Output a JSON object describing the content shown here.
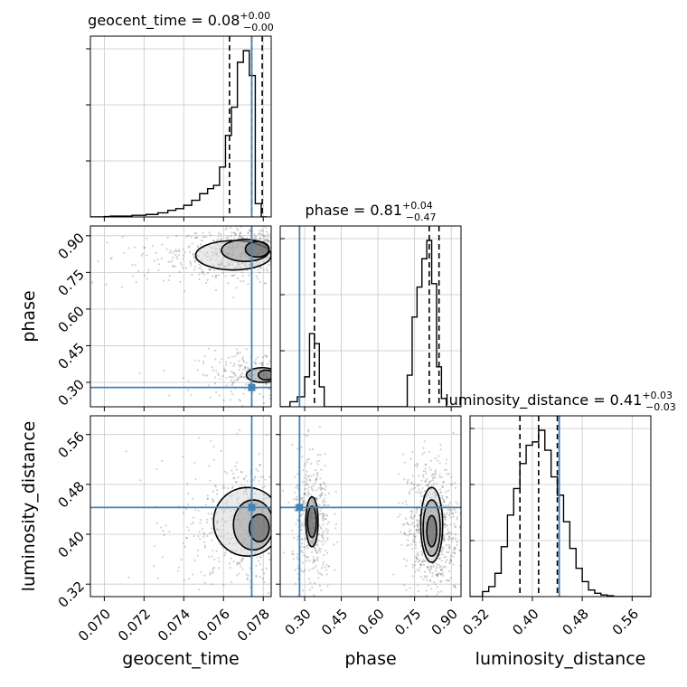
{
  "chart_data": {
    "type": "corner",
    "parameters": [
      "geocent_time",
      "phase",
      "luminosity_distance"
    ],
    "truths": {
      "geocent_time": 0.07742,
      "phase": 0.279,
      "luminosity_distance": 0.443
    },
    "colors": {
      "truth": "#4682b4",
      "hist": "#000000",
      "grid": "#c8c8c8",
      "quantile": "#000000"
    },
    "titles": [
      {
        "param": "geocent_time",
        "base": "geocent_time = 0.08",
        "sup": "+0.00",
        "sub": "−0.00"
      },
      {
        "param": "phase",
        "base": "phase = 0.81",
        "sup": "+0.04",
        "sub": "−0.47"
      },
      {
        "param": "luminosity_distance",
        "base": "luminosity_distance = 0.41",
        "sup": "+0.03",
        "sub": "−0.03"
      }
    ],
    "axes": {
      "geocent_time": {
        "range": [
          0.0693,
          0.0784
        ],
        "ticks": [
          0.07,
          0.072,
          0.074,
          0.076,
          0.078
        ],
        "tick_labels": [
          "0.070",
          "0.072",
          "0.074",
          "0.076",
          "0.078"
        ]
      },
      "phase": {
        "range": [
          0.2,
          0.94
        ],
        "ticks": [
          0.3,
          0.45,
          0.6,
          0.75,
          0.9
        ],
        "tick_labels": [
          "0.30",
          "0.45",
          "0.60",
          "0.75",
          "0.90"
        ]
      },
      "luminosity_distance": {
        "range": [
          0.3,
          0.59
        ],
        "ticks": [
          0.32,
          0.4,
          0.48,
          0.56
        ],
        "tick_labels": [
          "0.32",
          "0.40",
          "0.48",
          "0.56"
        ]
      }
    },
    "histograms": {
      "geocent_time": {
        "bin_edges": [
          0.0693,
          0.07,
          0.0703,
          0.0714,
          0.0721,
          0.0727,
          0.0732,
          0.0736,
          0.074,
          0.0744,
          0.0748,
          0.0752,
          0.0755,
          0.0758,
          0.0761,
          0.0764,
          0.0767,
          0.077,
          0.0773,
          0.0776,
          0.0779,
          0.0782
        ],
        "counts": [
          0,
          0.2,
          0.5,
          1,
          1.5,
          2.5,
          4,
          5,
          7,
          10,
          14,
          17,
          19,
          30,
          49,
          66,
          93,
          100,
          85,
          8,
          0
        ]
      },
      "phase": {
        "bin_edges": [
          0.2,
          0.24,
          0.27,
          0.3,
          0.32,
          0.34,
          0.36,
          0.38,
          0.72,
          0.74,
          0.76,
          0.78,
          0.8,
          0.82,
          0.84,
          0.86,
          0.88,
          0.9,
          0.94
        ],
        "counts": [
          0,
          3,
          6,
          18,
          44,
          38,
          12,
          0,
          19,
          54,
          72,
          89,
          100,
          74,
          24,
          5,
          0,
          0
        ]
      },
      "luminosity_distance": {
        "bin_edges": [
          0.3,
          0.32,
          0.33,
          0.34,
          0.35,
          0.36,
          0.37,
          0.38,
          0.39,
          0.4,
          0.41,
          0.42,
          0.43,
          0.44,
          0.45,
          0.46,
          0.47,
          0.48,
          0.49,
          0.5,
          0.51,
          0.52,
          0.53,
          0.59
        ],
        "counts": [
          0,
          3,
          6,
          14,
          30,
          49,
          65,
          80,
          91,
          93,
          100,
          88,
          72,
          61,
          45,
          29,
          17,
          9,
          4,
          2,
          1,
          0.5,
          0
        ]
      }
    },
    "quantile_lines": {
      "geocent_time": [
        0.0763,
        0.07742,
        0.07795
      ],
      "phase": [
        0.34,
        0.81,
        0.85
      ],
      "luminosity_distance": [
        0.38,
        0.41,
        0.44
      ]
    },
    "density_blobs": [
      {
        "x": "geocent_time",
        "y": "phase",
        "center": [
          0.0776,
          0.84
        ],
        "spread": [
          0.0012,
          0.03
        ],
        "weight": 1.0
      },
      {
        "x": "geocent_time",
        "y": "phase",
        "center": [
          0.0755,
          0.78
        ],
        "spread": [
          0.002,
          0.03
        ],
        "weight": 0.25
      },
      {
        "x": "geocent_time",
        "y": "phase",
        "center": [
          0.0778,
          0.33
        ],
        "spread": [
          0.001,
          0.03
        ],
        "weight": 0.4
      },
      {
        "x": "geocent_time",
        "y": "luminosity_distance",
        "center": [
          0.0776,
          0.415
        ],
        "spread": [
          0.0012,
          0.035
        ],
        "weight": 1.0
      },
      {
        "x": "phase",
        "y": "luminosity_distance",
        "center": [
          0.82,
          0.41
        ],
        "spread": [
          0.035,
          0.035
        ],
        "weight": 1.0
      },
      {
        "x": "phase",
        "y": "luminosity_distance",
        "center": [
          0.33,
          0.42
        ],
        "spread": [
          0.025,
          0.035
        ],
        "weight": 0.6
      }
    ],
    "contours": [
      {
        "x": "geocent_time",
        "y": "phase",
        "levels": [
          {
            "center": [
              0.0777,
              0.845
            ],
            "radii": [
              0.0006,
              0.032
            ]
          },
          {
            "center": [
              0.0771,
              0.84
            ],
            "radii": [
              0.0012,
              0.045
            ]
          },
          {
            "center": [
              0.0765,
              0.82
            ],
            "radii": [
              0.0019,
              0.06
            ]
          }
        ]
      },
      {
        "x": "geocent_time",
        "y": "phase",
        "levels": [
          {
            "center": [
              0.07815,
              0.33
            ],
            "radii": [
              0.0004,
              0.02
            ]
          },
          {
            "center": [
              0.07795,
              0.33
            ],
            "radii": [
              0.0008,
              0.03
            ]
          }
        ]
      },
      {
        "x": "geocent_time",
        "y": "luminosity_distance",
        "levels": [
          {
            "center": [
              0.0778,
              0.41
            ],
            "radii": [
              0.0005,
              0.022
            ]
          },
          {
            "center": [
              0.0775,
              0.415
            ],
            "radii": [
              0.001,
              0.04
            ]
          },
          {
            "center": [
              0.0772,
              0.42
            ],
            "radii": [
              0.0017,
              0.055
            ]
          }
        ]
      },
      {
        "x": "phase",
        "y": "luminosity_distance",
        "levels": [
          {
            "center": [
              0.82,
              0.405
            ],
            "radii": [
              0.02,
              0.025
            ]
          },
          {
            "center": [
              0.82,
              0.41
            ],
            "radii": [
              0.035,
              0.045
            ]
          },
          {
            "center": [
              0.82,
              0.415
            ],
            "radii": [
              0.045,
              0.06
            ]
          }
        ]
      },
      {
        "x": "phase",
        "y": "luminosity_distance",
        "levels": [
          {
            "center": [
              0.33,
              0.42
            ],
            "radii": [
              0.018,
              0.025
            ]
          },
          {
            "center": [
              0.33,
              0.42
            ],
            "radii": [
              0.025,
              0.04
            ]
          }
        ]
      }
    ]
  }
}
